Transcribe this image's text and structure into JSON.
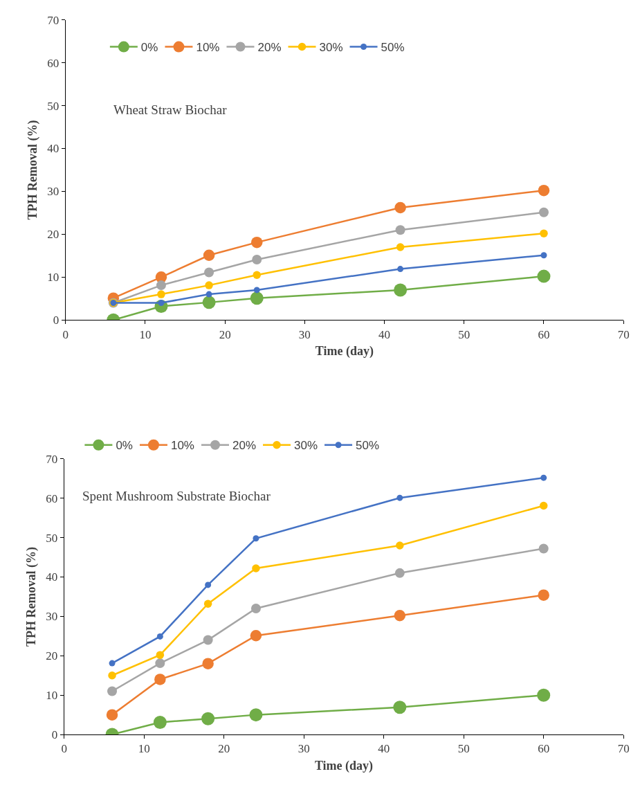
{
  "chart_data": [
    {
      "type": "line",
      "title": "Wheat Straw Biochar",
      "xlabel": "Time (day)",
      "ylabel": "TPH Removal (%)",
      "x": [
        6,
        12,
        18,
        24,
        42,
        60
      ],
      "xlim": [
        0,
        70
      ],
      "xticks": [
        0,
        10,
        20,
        30,
        40,
        50,
        60,
        70
      ],
      "ylim": [
        0,
        70
      ],
      "yticks": [
        0,
        10,
        20,
        30,
        40,
        50,
        60,
        70
      ],
      "legend": "top",
      "marker": "circle",
      "line_style": "solid",
      "series": [
        {
          "name": "0%",
          "color": "#70ad47",
          "values": [
            0,
            3.2,
            4.1,
            5.1,
            7.0,
            10.2
          ]
        },
        {
          "name": "10%",
          "color": "#ed7d31",
          "values": [
            5.1,
            10,
            15.1,
            18.1,
            26.2,
            30.2
          ]
        },
        {
          "name": "20%",
          "color": "#a5a5a5",
          "values": [
            4,
            8.1,
            11.1,
            14.1,
            21,
            25.1
          ]
        },
        {
          "name": "30%",
          "color": "#ffc000",
          "values": [
            4,
            6,
            8.1,
            10.5,
            17,
            20.2
          ]
        },
        {
          "name": "50%",
          "color": "#4472c4",
          "values": [
            4,
            4,
            6,
            7,
            11.9,
            15.1
          ]
        }
      ]
    },
    {
      "type": "line",
      "title": "Spent Mushroom Substrate Biochar",
      "xlabel": "Time (day)",
      "ylabel": "TPH Removal (%)",
      "x": [
        6,
        12,
        18,
        24,
        42,
        60
      ],
      "xlim": [
        0,
        70
      ],
      "xticks": [
        0,
        10,
        20,
        30,
        40,
        50,
        60,
        70
      ],
      "ylim": [
        0,
        70
      ],
      "yticks": [
        0,
        10,
        20,
        30,
        40,
        50,
        60,
        70
      ],
      "legend": "top",
      "marker": "circle",
      "line_style": "solid",
      "series": [
        {
          "name": "0%",
          "color": "#70ad47",
          "values": [
            0,
            3.1,
            4,
            5,
            6.9,
            10
          ]
        },
        {
          "name": "10%",
          "color": "#ed7d31",
          "values": [
            5,
            14,
            18,
            25.1,
            30.2,
            35.4
          ]
        },
        {
          "name": "20%",
          "color": "#a5a5a5",
          "values": [
            11,
            18.1,
            24,
            32,
            41,
            47.2
          ]
        },
        {
          "name": "30%",
          "color": "#ffc000",
          "values": [
            15,
            20.2,
            33.2,
            42.2,
            48,
            58.1
          ]
        },
        {
          "name": "50%",
          "color": "#4472c4",
          "values": [
            18.1,
            24.9,
            38,
            49.8,
            60.1,
            65.2
          ]
        }
      ]
    }
  ]
}
